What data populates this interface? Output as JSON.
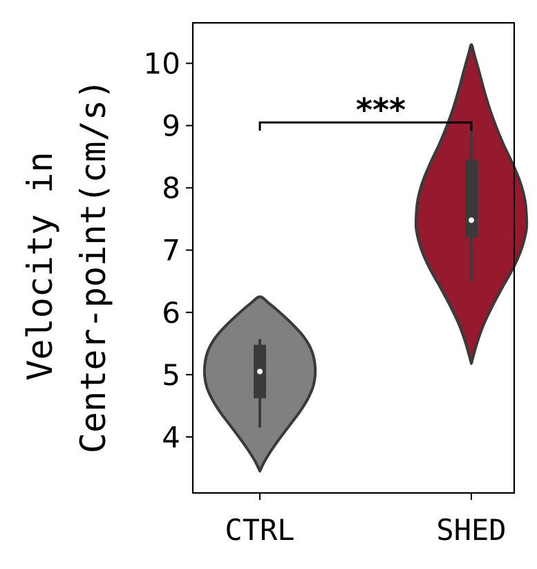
{
  "chart_data": {
    "type": "violin",
    "categories": [
      "CTRL",
      "SHED"
    ],
    "ylabel_lines": [
      "Velocity in",
      "Center-point(cm/s)"
    ],
    "ylim": [
      3.1,
      10.65
    ],
    "yticks": [
      4,
      5,
      6,
      7,
      8,
      9,
      10
    ],
    "series": [
      {
        "category": "CTRL",
        "color": "#808080",
        "min": 3.45,
        "max": 6.25,
        "median": 5.05,
        "q1": 4.62,
        "q3": 5.48,
        "whisker_low": 4.15,
        "whisker_high": 5.57,
        "density_profile": [
          [
            3.45,
            0.0
          ],
          [
            3.6,
            0.08
          ],
          [
            3.8,
            0.22
          ],
          [
            4.0,
            0.38
          ],
          [
            4.2,
            0.55
          ],
          [
            4.4,
            0.72
          ],
          [
            4.6,
            0.86
          ],
          [
            4.8,
            0.96
          ],
          [
            5.0,
            1.0
          ],
          [
            5.2,
            0.99
          ],
          [
            5.4,
            0.93
          ],
          [
            5.6,
            0.8
          ],
          [
            5.8,
            0.6
          ],
          [
            6.0,
            0.36
          ],
          [
            6.15,
            0.16
          ],
          [
            6.25,
            0.0
          ]
        ]
      },
      {
        "category": "SHED",
        "color": "#96192e",
        "min": 5.18,
        "max": 10.3,
        "median": 7.48,
        "q1": 7.2,
        "q3": 8.45,
        "whisker_low": 6.5,
        "whisker_high": 9.0,
        "density_profile": [
          [
            5.18,
            0.0
          ],
          [
            5.5,
            0.1
          ],
          [
            5.8,
            0.22
          ],
          [
            6.1,
            0.38
          ],
          [
            6.4,
            0.56
          ],
          [
            6.7,
            0.75
          ],
          [
            7.0,
            0.9
          ],
          [
            7.3,
            0.99
          ],
          [
            7.5,
            1.0
          ],
          [
            7.8,
            0.97
          ],
          [
            8.1,
            0.88
          ],
          [
            8.4,
            0.74
          ],
          [
            8.7,
            0.58
          ],
          [
            9.0,
            0.44
          ],
          [
            9.3,
            0.32
          ],
          [
            9.6,
            0.22
          ],
          [
            9.9,
            0.13
          ],
          [
            10.15,
            0.05
          ],
          [
            10.3,
            0.0
          ]
        ]
      }
    ],
    "annotation": {
      "label": "***",
      "from": "CTRL",
      "to": "SHED",
      "y": 9.05
    }
  }
}
